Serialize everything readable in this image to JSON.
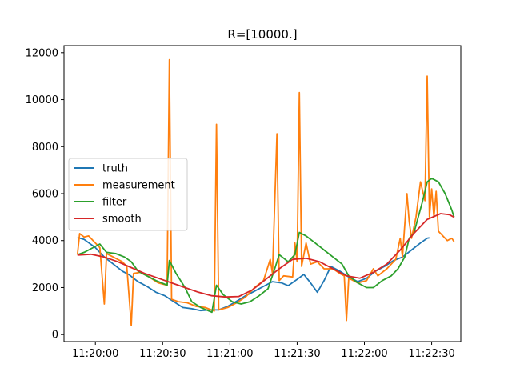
{
  "chart_data": {
    "type": "line",
    "title": "R=[10000.]",
    "xlabel": "",
    "ylabel": "",
    "x_unit": "time",
    "xlim": [
      "11:19:46",
      "11:22:43"
    ],
    "ylim": [
      -300,
      12300
    ],
    "x_ticks": [
      "11:20:00",
      "11:20:30",
      "11:21:00",
      "11:21:30",
      "11:22:00",
      "11:22:30"
    ],
    "y_ticks": [
      0,
      2000,
      4000,
      6000,
      8000,
      10000,
      12000
    ],
    "grid": false,
    "legend_position": "center-left",
    "series": [
      {
        "name": "truth",
        "color": "#1f77b4",
        "points": [
          [
            "11:19:52",
            4130
          ],
          [
            "11:19:55",
            4050
          ],
          [
            "11:20:00",
            3700
          ],
          [
            "11:20:04",
            3300
          ],
          [
            "11:20:08",
            3000
          ],
          [
            "11:20:12",
            2700
          ],
          [
            "11:20:15",
            2550
          ],
          [
            "11:20:19",
            2250
          ],
          [
            "11:20:23",
            2050
          ],
          [
            "11:20:27",
            1800
          ],
          [
            "11:20:31",
            1650
          ],
          [
            "11:20:35",
            1400
          ],
          [
            "11:20:39",
            1150
          ],
          [
            "11:20:43",
            1100
          ],
          [
            "11:20:47",
            1020
          ],
          [
            "11:20:51",
            1050
          ],
          [
            "11:20:55",
            1050
          ],
          [
            "11:20:59",
            1200
          ],
          [
            "11:21:03",
            1420
          ],
          [
            "11:21:07",
            1650
          ],
          [
            "11:21:11",
            1850
          ],
          [
            "11:21:15",
            2050
          ],
          [
            "11:21:19",
            2250
          ],
          [
            "11:21:23",
            2200
          ],
          [
            "11:21:26",
            2080
          ],
          [
            "11:21:30",
            2350
          ],
          [
            "11:21:33",
            2560
          ],
          [
            "11:21:36",
            2200
          ],
          [
            "11:21:39",
            1800
          ],
          [
            "11:21:42",
            2300
          ],
          [
            "11:21:45",
            2900
          ],
          [
            "11:21:49",
            2700
          ],
          [
            "11:21:53",
            2450
          ],
          [
            "11:21:57",
            2250
          ],
          [
            "11:22:01",
            2400
          ],
          [
            "11:22:05",
            2700
          ],
          [
            "11:22:09",
            2900
          ],
          [
            "11:22:13",
            3150
          ],
          [
            "11:22:17",
            3300
          ],
          [
            "11:22:21",
            3600
          ],
          [
            "11:22:25",
            3900
          ],
          [
            "11:22:28",
            4100
          ],
          [
            "11:22:29",
            4120
          ]
        ]
      },
      {
        "name": "measurement",
        "color": "#ff7f0e",
        "points": [
          [
            "11:19:52",
            3400
          ],
          [
            "11:19:53",
            4300
          ],
          [
            "11:19:55",
            4150
          ],
          [
            "11:19:57",
            4200
          ],
          [
            "11:20:00",
            3900
          ],
          [
            "11:20:02",
            3700
          ],
          [
            "11:20:04",
            1300
          ],
          [
            "11:20:05",
            3450
          ],
          [
            "11:20:08",
            3300
          ],
          [
            "11:20:12",
            3100
          ],
          [
            "11:20:14",
            2900
          ],
          [
            "11:20:16",
            380
          ],
          [
            "11:20:17",
            2600
          ],
          [
            "11:20:20",
            2650
          ],
          [
            "11:20:24",
            2450
          ],
          [
            "11:20:28",
            2200
          ],
          [
            "11:20:32",
            2100
          ],
          [
            "11:20:33",
            11700
          ],
          [
            "11:20:34",
            1500
          ],
          [
            "11:20:37",
            1400
          ],
          [
            "11:20:41",
            1350
          ],
          [
            "11:20:45",
            1200
          ],
          [
            "11:20:49",
            1150
          ],
          [
            "11:20:53",
            1000
          ],
          [
            "11:20:54",
            8950
          ],
          [
            "11:20:55",
            1050
          ],
          [
            "11:20:59",
            1150
          ],
          [
            "11:21:03",
            1350
          ],
          [
            "11:21:07",
            1600
          ],
          [
            "11:21:11",
            2000
          ],
          [
            "11:21:15",
            2300
          ],
          [
            "11:21:18",
            3200
          ],
          [
            "11:21:19",
            2600
          ],
          [
            "11:21:21",
            8550
          ],
          [
            "11:21:22",
            2300
          ],
          [
            "11:21:24",
            2500
          ],
          [
            "11:21:28",
            2450
          ],
          [
            "11:21:29",
            3900
          ],
          [
            "11:21:30",
            3100
          ],
          [
            "11:21:31",
            10300
          ],
          [
            "11:21:32",
            2900
          ],
          [
            "11:21:34",
            3900
          ],
          [
            "11:21:36",
            3000
          ],
          [
            "11:21:39",
            3100
          ],
          [
            "11:21:42",
            2800
          ],
          [
            "11:21:46",
            2800
          ],
          [
            "11:21:49",
            2600
          ],
          [
            "11:21:51",
            2500
          ],
          [
            "11:21:52",
            600
          ],
          [
            "11:21:53",
            2400
          ],
          [
            "11:21:57",
            2200
          ],
          [
            "11:22:01",
            2300
          ],
          [
            "11:22:04",
            2800
          ],
          [
            "11:22:06",
            2500
          ],
          [
            "11:22:10",
            2800
          ],
          [
            "11:22:14",
            3200
          ],
          [
            "11:22:16",
            4100
          ],
          [
            "11:22:17",
            3300
          ],
          [
            "11:22:19",
            6000
          ],
          [
            "11:22:20",
            4800
          ],
          [
            "11:22:21",
            4100
          ],
          [
            "11:22:23",
            5000
          ],
          [
            "11:22:25",
            6500
          ],
          [
            "11:22:27",
            5700
          ],
          [
            "11:22:28",
            11000
          ],
          [
            "11:22:29",
            5000
          ],
          [
            "11:22:30",
            6200
          ],
          [
            "11:22:31",
            5000
          ],
          [
            "11:22:32",
            6100
          ],
          [
            "11:22:33",
            4400
          ],
          [
            "11:22:35",
            4200
          ],
          [
            "11:22:37",
            4000
          ],
          [
            "11:22:39",
            4100
          ],
          [
            "11:22:40",
            3950
          ]
        ]
      },
      {
        "name": "filter",
        "color": "#2ca02c",
        "points": [
          [
            "11:19:52",
            3400
          ],
          [
            "11:19:55",
            3500
          ],
          [
            "11:19:59",
            3700
          ],
          [
            "11:20:02",
            3850
          ],
          [
            "11:20:05",
            3500
          ],
          [
            "11:20:09",
            3450
          ],
          [
            "11:20:13",
            3300
          ],
          [
            "11:20:16",
            3100
          ],
          [
            "11:20:19",
            2700
          ],
          [
            "11:20:23",
            2500
          ],
          [
            "11:20:27",
            2300
          ],
          [
            "11:20:32",
            2100
          ],
          [
            "11:20:33",
            3150
          ],
          [
            "11:20:36",
            2600
          ],
          [
            "11:20:40",
            2000
          ],
          [
            "11:20:43",
            1400
          ],
          [
            "11:20:47",
            1150
          ],
          [
            "11:20:52",
            950
          ],
          [
            "11:20:54",
            2100
          ],
          [
            "11:20:57",
            1700
          ],
          [
            "11:21:01",
            1400
          ],
          [
            "11:21:05",
            1300
          ],
          [
            "11:21:09",
            1400
          ],
          [
            "11:21:13",
            1650
          ],
          [
            "11:21:17",
            1950
          ],
          [
            "11:21:20",
            2800
          ],
          [
            "11:21:22",
            3400
          ],
          [
            "11:21:26",
            3100
          ],
          [
            "11:21:29",
            3400
          ],
          [
            "11:21:31",
            4350
          ],
          [
            "11:21:34",
            4200
          ],
          [
            "11:21:38",
            3900
          ],
          [
            "11:21:42",
            3600
          ],
          [
            "11:21:46",
            3300
          ],
          [
            "11:21:50",
            3000
          ],
          [
            "11:21:53",
            2500
          ],
          [
            "11:21:57",
            2200
          ],
          [
            "11:22:01",
            2000
          ],
          [
            "11:22:04",
            2000
          ],
          [
            "11:22:08",
            2300
          ],
          [
            "11:22:12",
            2500
          ],
          [
            "11:22:15",
            2800
          ],
          [
            "11:22:18",
            3300
          ],
          [
            "11:22:20",
            4100
          ],
          [
            "11:22:22",
            4300
          ],
          [
            "11:22:24",
            5000
          ],
          [
            "11:22:26",
            5700
          ],
          [
            "11:22:28",
            6500
          ],
          [
            "11:22:30",
            6650
          ],
          [
            "11:22:33",
            6500
          ],
          [
            "11:22:36",
            6000
          ],
          [
            "11:22:39",
            5300
          ],
          [
            "11:22:40",
            5000
          ]
        ]
      },
      {
        "name": "smooth",
        "color": "#d62728",
        "points": [
          [
            "11:19:52",
            3380
          ],
          [
            "11:19:58",
            3420
          ],
          [
            "11:20:04",
            3300
          ],
          [
            "11:20:10",
            3100
          ],
          [
            "11:20:16",
            2850
          ],
          [
            "11:20:22",
            2600
          ],
          [
            "11:20:28",
            2400
          ],
          [
            "11:20:34",
            2200
          ],
          [
            "11:20:40",
            2000
          ],
          [
            "11:20:46",
            1800
          ],
          [
            "11:20:52",
            1650
          ],
          [
            "11:20:58",
            1600
          ],
          [
            "11:21:04",
            1620
          ],
          [
            "11:21:10",
            1900
          ],
          [
            "11:21:16",
            2350
          ],
          [
            "11:21:22",
            2800
          ],
          [
            "11:21:28",
            3200
          ],
          [
            "11:21:34",
            3250
          ],
          [
            "11:21:40",
            3100
          ],
          [
            "11:21:46",
            2800
          ],
          [
            "11:21:52",
            2500
          ],
          [
            "11:21:58",
            2400
          ],
          [
            "11:22:04",
            2650
          ],
          [
            "11:22:10",
            3000
          ],
          [
            "11:22:16",
            3600
          ],
          [
            "11:22:22",
            4300
          ],
          [
            "11:22:28",
            4900
          ],
          [
            "11:22:34",
            5150
          ],
          [
            "11:22:38",
            5100
          ],
          [
            "11:22:40",
            5000
          ]
        ]
      }
    ]
  }
}
